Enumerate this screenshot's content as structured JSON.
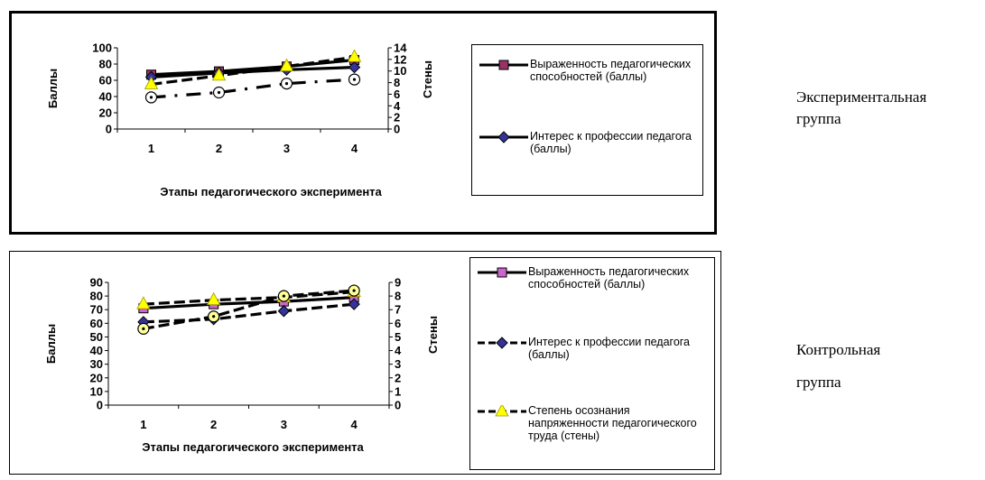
{
  "side_labels": {
    "experimental": [
      "Экспериментальная",
      "группа"
    ],
    "control": [
      "Контрольная",
      "группа"
    ]
  },
  "chart_data": [
    {
      "type": "line",
      "group": "experimental",
      "xlabel": "Этапы педагогического эксперимента",
      "ylabel": "Баллы",
      "y2label": "Стены",
      "categories": [
        "1",
        "2",
        "3",
        "4"
      ],
      "ylim": [
        0,
        100
      ],
      "yticks": [
        0,
        20,
        40,
        60,
        80,
        100
      ],
      "y2lim": [
        0,
        14
      ],
      "y2ticks": [
        0,
        2,
        4,
        6,
        8,
        10,
        12,
        14
      ],
      "grid": false,
      "legend_position": "right",
      "series": [
        {
          "name": "Выраженность педагогических способностей (баллы)",
          "axis": "left",
          "marker": "square",
          "color": "#993366",
          "line_style": "solid",
          "values": [
            67,
            71,
            77,
            85
          ]
        },
        {
          "name": "Интерес к профессии педагога (баллы)",
          "axis": "left",
          "marker": "diamond",
          "color": "#333399",
          "line_style": "solid",
          "values": [
            64,
            69,
            73,
            76
          ]
        },
        {
          "name": "",
          "axis": "right",
          "marker": "triangle",
          "color": "#ffff00",
          "line_style": "dashed",
          "values": [
            7.7,
            9.2,
            10.8,
            12.4
          ]
        },
        {
          "name": "",
          "axis": "left",
          "marker": "circle",
          "color": "#ffffff",
          "line_style": "dashdot",
          "values": [
            39,
            45,
            56,
            61
          ]
        }
      ],
      "legend": [
        {
          "label": "Выраженность педагогических способностей (баллы)",
          "marker": "square",
          "color": "#993366",
          "line_style": "solid"
        },
        {
          "label": "Интерес к профессии педагога (баллы)",
          "marker": "diamond",
          "color": "#333399",
          "line_style": "solid"
        }
      ]
    },
    {
      "type": "line",
      "group": "control",
      "xlabel": "Этапы педагогического эксперимента",
      "ylabel": "Баллы",
      "y2label": "Стены",
      "categories": [
        "1",
        "2",
        "3",
        "4"
      ],
      "ylim": [
        0,
        90
      ],
      "yticks": [
        0,
        10,
        20,
        30,
        40,
        50,
        60,
        70,
        80,
        90
      ],
      "y2lim": [
        0,
        9
      ],
      "y2ticks": [
        0,
        1,
        2,
        3,
        4,
        5,
        6,
        7,
        8,
        9
      ],
      "grid": false,
      "legend_position": "right",
      "series": [
        {
          "name": "Выраженность педагогических способностей (баллы)",
          "axis": "left",
          "marker": "square",
          "color": "#cc66cc",
          "line_style": "solid",
          "values": [
            71,
            74,
            76,
            79
          ]
        },
        {
          "name": "Интерес к профессии педагога (баллы)",
          "axis": "left",
          "marker": "diamond",
          "color": "#333399",
          "line_style": "dashed",
          "values": [
            61,
            63,
            69,
            74
          ]
        },
        {
          "name": "Степень осознания напряженности педагогического труда (стены)",
          "axis": "right",
          "marker": "triangle",
          "color": "#ffff00",
          "line_style": "dashed",
          "values": [
            7.4,
            7.7,
            7.9,
            8.3
          ]
        },
        {
          "name": "",
          "axis": "left",
          "marker": "circle",
          "color": "#ffff99",
          "line_style": "dashed",
          "values": [
            56,
            65,
            80,
            84
          ]
        }
      ],
      "legend": [
        {
          "label": "Выраженность педагогических способностей (баллы)",
          "marker": "square",
          "color": "#cc66cc",
          "line_style": "solid"
        },
        {
          "label": "Интерес к профессии педагога (баллы)",
          "marker": "diamond",
          "color": "#333399",
          "line_style": "dashed"
        },
        {
          "label": "Степень осознания напряженности педагогического труда (стены)",
          "marker": "triangle",
          "color": "#ffff00",
          "line_style": "dashed"
        }
      ]
    }
  ]
}
